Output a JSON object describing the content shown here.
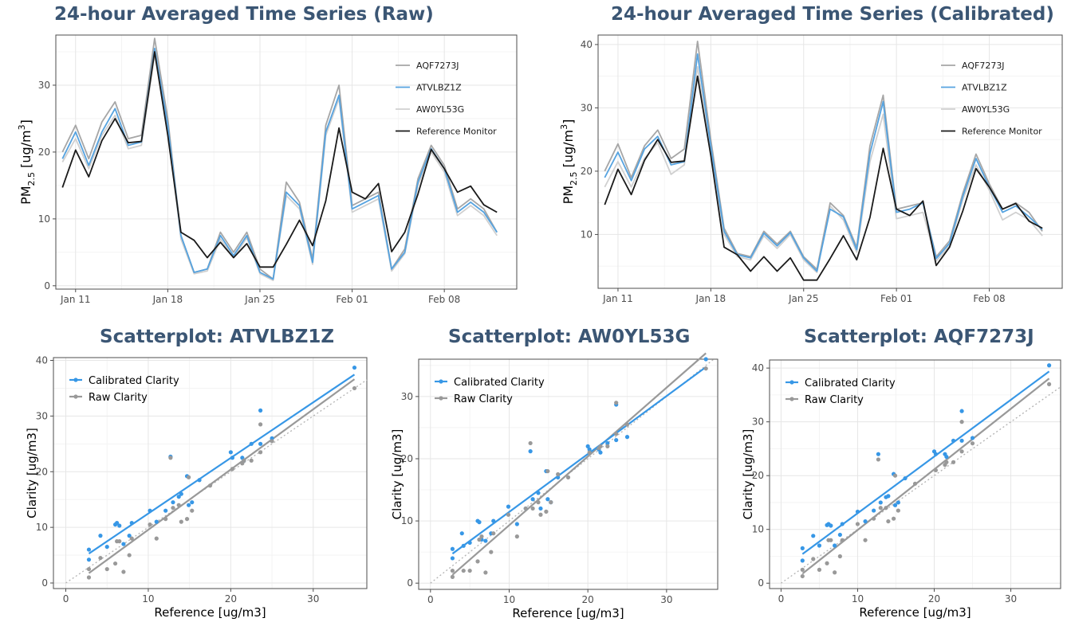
{
  "chart_data": [
    {
      "type": "line",
      "title": "24-hour Averaged Time Series (Raw)",
      "ylabel": "PM",
      "ylabel_sub": "2.5",
      "ylabel_unit_pre": " [ug/m",
      "ylabel_unit_sup": "3",
      "ylabel_unit_post": "]",
      "ylim": [
        -0.5,
        37.5
      ],
      "yticks": [
        0,
        10,
        20,
        30
      ],
      "xlim": [
        9.5,
        44.5
      ],
      "xticks": [
        {
          "x": 11,
          "label": "Jan 11"
        },
        {
          "x": 18,
          "label": "Jan 18"
        },
        {
          "x": 25,
          "label": "Jan 25"
        },
        {
          "x": 32,
          "label": "Feb 01"
        },
        {
          "x": 39,
          "label": "Feb 08"
        }
      ],
      "x": [
        10,
        11,
        12,
        13,
        14,
        15,
        16,
        17,
        18,
        19,
        20,
        21,
        22,
        23,
        24,
        25,
        26,
        27,
        28,
        29,
        30,
        31,
        32,
        33,
        34,
        35,
        36,
        37,
        38,
        39,
        40,
        41,
        42,
        43
      ],
      "grid": true,
      "legend_position": "top-right",
      "series": [
        {
          "name": "AQF7273J",
          "color": "#a6a6a6",
          "values": [
            20,
            24,
            19,
            24.5,
            27.5,
            22,
            22.5,
            37,
            25,
            7.5,
            2,
            2.5,
            8,
            5,
            8,
            2.5,
            1,
            15.5,
            12.5,
            4,
            24,
            30,
            12,
            13,
            14,
            2.5,
            5.5,
            16,
            21,
            18,
            11.5,
            13,
            11.5,
            8
          ]
        },
        {
          "name": "ATVLBZ1Z",
          "color": "#56a3e0",
          "values": [
            19,
            23,
            18,
            23,
            26.5,
            21,
            21.5,
            35.5,
            24,
            7.5,
            2,
            2.5,
            7.5,
            4.5,
            7.5,
            2,
            1,
            14,
            12,
            3.5,
            23,
            28.5,
            11.5,
            12.5,
            13.5,
            2.5,
            5,
            15.5,
            20.5,
            17.5,
            11,
            12.5,
            11,
            8
          ]
        },
        {
          "name": "AW0YL53G",
          "color": "#d0d0d0",
          "values": [
            18.5,
            22,
            17.5,
            22.5,
            25.5,
            20.5,
            21,
            34.5,
            23.5,
            7,
            1.8,
            2.2,
            7,
            4.2,
            7.2,
            1.8,
            0.8,
            13.5,
            11.5,
            3.2,
            22.5,
            28,
            11,
            12,
            13,
            2.2,
            4.8,
            15,
            20,
            17,
            10.5,
            12,
            10.5,
            7.5
          ]
        },
        {
          "name": "Reference Monitor",
          "color": "#1a1a1a",
          "values": [
            14.7,
            20.3,
            16.3,
            21.7,
            25,
            21.4,
            21.6,
            35,
            22.5,
            8,
            6.8,
            4.2,
            6.5,
            4.2,
            6.3,
            2.8,
            2.8,
            6.2,
            9.8,
            6,
            12.7,
            23.6,
            14,
            13,
            15.3,
            5.1,
            8,
            13.7,
            20.4,
            17.5,
            14,
            14.9,
            12.1,
            11
          ]
        }
      ]
    },
    {
      "type": "line",
      "title": "24-hour Averaged Time Series (Calibrated)",
      "ylabel": "PM",
      "ylabel_sub": "2.5",
      "ylabel_unit_pre": " [ug/m",
      "ylabel_unit_sup": "3",
      "ylabel_unit_post": "]",
      "ylim": [
        1.5,
        41.5
      ],
      "yticks": [
        10,
        20,
        30,
        40
      ],
      "xlim": [
        9.5,
        44.5
      ],
      "xticks": [
        {
          "x": 11,
          "label": "Jan 11"
        },
        {
          "x": 18,
          "label": "Jan 18"
        },
        {
          "x": 25,
          "label": "Jan 25"
        },
        {
          "x": 32,
          "label": "Feb 01"
        },
        {
          "x": 39,
          "label": "Feb 08"
        }
      ],
      "x": [
        10,
        11,
        12,
        13,
        14,
        15,
        16,
        17,
        18,
        19,
        20,
        21,
        22,
        23,
        24,
        25,
        26,
        27,
        28,
        29,
        30,
        31,
        32,
        33,
        34,
        35,
        36,
        37,
        38,
        39,
        40,
        41,
        42,
        43
      ],
      "grid": true,
      "legend_position": "top-right",
      "series": [
        {
          "name": "AQF7273J",
          "color": "#a6a6a6",
          "values": [
            20,
            24.3,
            19,
            24,
            26.5,
            22,
            23.5,
            40.5,
            25,
            11,
            7,
            6.5,
            10.5,
            8.5,
            10.5,
            6.5,
            4.5,
            15,
            13,
            8,
            24,
            32,
            14,
            14.5,
            15,
            6.5,
            9,
            16.5,
            22.7,
            18,
            14,
            15,
            13.5,
            10.5
          ]
        },
        {
          "name": "ATVLBZ1Z",
          "color": "#56a3e0",
          "values": [
            19,
            23,
            18.5,
            23.5,
            25.5,
            21,
            21.5,
            38.5,
            24,
            10.5,
            6.8,
            6.3,
            10.2,
            8.2,
            10.3,
            6.3,
            4.2,
            14,
            12.8,
            7.6,
            22.8,
            31,
            13.5,
            14,
            15,
            6.2,
            8.6,
            16,
            22,
            17.5,
            13.5,
            14.5,
            12.8,
            10.8
          ]
        },
        {
          "name": "AW0YL53G",
          "color": "#d0d0d0",
          "values": [
            17.5,
            21.5,
            17.5,
            22,
            24.5,
            19.5,
            21,
            36.5,
            23,
            10,
            6.5,
            6,
            9.8,
            7.8,
            10,
            6,
            4,
            14.5,
            12.3,
            7.2,
            21.5,
            29,
            12.5,
            13,
            13.5,
            5.8,
            8.2,
            15.5,
            21,
            17,
            12.3,
            13.5,
            12.3,
            9.8
          ]
        },
        {
          "name": "Reference Monitor",
          "color": "#1a1a1a",
          "values": [
            14.7,
            20.3,
            16.3,
            21.7,
            25,
            21.4,
            21.6,
            35,
            22.5,
            8,
            6.8,
            4.2,
            6.5,
            4.2,
            6.3,
            2.8,
            2.8,
            6.2,
            9.8,
            6,
            12.7,
            23.6,
            14,
            13,
            15.3,
            5.1,
            8,
            13.7,
            20.4,
            17.5,
            14,
            14.9,
            12.1,
            11
          ]
        }
      ]
    },
    {
      "type": "scatter",
      "title": "Scatterplot: ATVLBZ1Z",
      "xlabel": "Reference [ug/m3]",
      "ylabel": "Clarity [ug/m3]",
      "xlim": [
        -1.5,
        36.5
      ],
      "ylim": [
        -1,
        40.5
      ],
      "xticks": [
        0,
        10,
        20,
        30
      ],
      "yticks": [
        0,
        10,
        20,
        30,
        40
      ],
      "grid": true,
      "legend_position": "top-left",
      "identity_line": true,
      "series": [
        {
          "name": "Calibrated Clarity",
          "color": "#3797e6",
          "x": [
            2.8,
            2.8,
            4.2,
            5,
            6,
            6.2,
            6.5,
            7,
            7.7,
            8,
            10.2,
            11,
            12.1,
            12.7,
            13,
            13.7,
            14,
            14.7,
            14.9,
            15.3,
            16.2,
            20,
            20.2,
            21.4,
            21.6,
            22.5,
            23.6,
            23.6,
            25,
            35
          ],
          "y": [
            6,
            4.2,
            8.5,
            6.5,
            10.5,
            10.8,
            10.3,
            7,
            8.5,
            10.8,
            13,
            11,
            13,
            22.7,
            14.5,
            15.5,
            16,
            19.2,
            14,
            14.5,
            18.5,
            23.5,
            22.5,
            22.5,
            22,
            25,
            31,
            25,
            26,
            38.7
          ],
          "fit": [
            [
              2.8,
              4.7
            ],
            [
              35,
              37
            ]
          ]
        },
        {
          "name": "Raw Clarity",
          "color": "#999999",
          "x": [
            2.8,
            2.8,
            4.2,
            5,
            6,
            6.2,
            6.5,
            7,
            7.7,
            8,
            10.2,
            11,
            12.1,
            12.7,
            13,
            13.7,
            14,
            14.7,
            14.9,
            15.3,
            17.5,
            20.2,
            21.4,
            21.6,
            22.5,
            23.6,
            23.6,
            25,
            35
          ],
          "y": [
            1,
            2.5,
            4.5,
            2.5,
            3.5,
            7.5,
            7.5,
            2,
            5,
            8,
            10.5,
            8,
            11.5,
            22.5,
            13.5,
            14,
            11,
            11.5,
            19,
            13,
            17.5,
            20.5,
            21.5,
            22,
            22,
            23.5,
            28.5,
            25.5,
            35
          ],
          "fit": [
            [
              2.8,
              1.8
            ],
            [
              35,
              37
            ]
          ]
        }
      ]
    },
    {
      "type": "scatter",
      "title": "Scatterplot: AW0YL53G",
      "xlabel": "Reference [ug/m3]",
      "ylabel": "Clarity [ug/m3]",
      "xlim": [
        -1.5,
        36.5
      ],
      "ylim": [
        -1,
        36
      ],
      "xticks": [
        0,
        10,
        20,
        30
      ],
      "yticks": [
        0,
        10,
        20,
        30
      ],
      "grid": true,
      "legend_position": "top-left",
      "identity_line": true,
      "series": [
        {
          "name": "Calibrated Clarity",
          "color": "#3797e6",
          "x": [
            2.8,
            2.8,
            4,
            4.2,
            5,
            6,
            6.2,
            6.5,
            7,
            7.7,
            8,
            9.9,
            11,
            12.1,
            12.7,
            13,
            13.7,
            14,
            14.7,
            14.9,
            15.3,
            16.2,
            20,
            20.2,
            21.4,
            21.6,
            22.5,
            23.6,
            23.6,
            25,
            35
          ],
          "y": [
            5.5,
            4,
            8,
            6,
            6.5,
            10,
            9.8,
            7,
            6.8,
            8,
            10,
            12.3,
            9.5,
            12,
            21.2,
            13.5,
            14.5,
            12,
            18,
            13.5,
            13,
            17,
            22,
            21.5,
            21.5,
            21,
            22.5,
            28.7,
            23,
            23.5,
            36
          ]
        },
        {
          "name": "Raw Clarity",
          "color": "#999999",
          "x": [
            2.8,
            2.8,
            4.2,
            5,
            6,
            6.2,
            6.5,
            7,
            7.7,
            8,
            9.9,
            11,
            12.1,
            12.7,
            13,
            13.7,
            14,
            14.7,
            14.9,
            15.3,
            16.2,
            17.5,
            20.2,
            21.4,
            21.6,
            22.5,
            23.6,
            23.6,
            25,
            35
          ],
          "y": [
            1,
            2,
            2,
            2,
            3.5,
            7,
            7.5,
            1.7,
            5,
            8,
            11,
            7.5,
            12,
            22.5,
            12,
            13,
            11,
            11.5,
            18,
            13,
            17.5,
            17,
            21,
            21.7,
            22,
            22,
            24,
            29,
            25.5,
            34.5
          ]
        }
      ]
    },
    {
      "type": "scatter",
      "title": "Scatterplot: AQF7273J",
      "xlabel": "Reference [ug/m3]",
      "ylabel": "Clarity [ug/m3]",
      "xlim": [
        -1.5,
        36.5
      ],
      "ylim": [
        -1,
        41.5
      ],
      "xticks": [
        0,
        10,
        20,
        30
      ],
      "yticks": [
        0,
        10,
        20,
        30,
        40
      ],
      "grid": true,
      "legend_position": "top-left",
      "identity_line": true,
      "series": [
        {
          "name": "Calibrated Clarity",
          "color": "#3797e6",
          "x": [
            2.8,
            2.8,
            4.2,
            5,
            6,
            6.2,
            6.5,
            7,
            7.7,
            8,
            10,
            11,
            12.1,
            12.7,
            13,
            13.7,
            14,
            14.7,
            14.9,
            15.3,
            16.2,
            20,
            20.2,
            21.4,
            21.6,
            22.5,
            23.6,
            23.6,
            25,
            35
          ],
          "y": [
            6.5,
            4.2,
            8.8,
            7,
            10.8,
            11,
            10.7,
            7,
            9,
            11,
            13.3,
            11.5,
            13.5,
            24,
            15,
            16,
            16.2,
            20.3,
            14.5,
            15,
            19.5,
            24.5,
            24,
            24,
            23.5,
            26.5,
            32,
            26.5,
            27,
            40.5
          ]
        },
        {
          "name": "Raw Clarity",
          "color": "#999999",
          "x": [
            2.8,
            2.8,
            4.2,
            5,
            6,
            6.2,
            6.5,
            7,
            7.7,
            8,
            10,
            11,
            12.1,
            12.7,
            13,
            13.7,
            14,
            14.7,
            14.9,
            15.3,
            17.5,
            20.2,
            21.4,
            21.6,
            22.5,
            23.6,
            23.6,
            25,
            35
          ],
          "y": [
            1.3,
            2.5,
            4.5,
            2.5,
            3.7,
            8,
            8,
            2,
            5,
            8,
            11,
            8,
            12,
            23,
            14,
            14,
            11.5,
            12,
            20,
            13.5,
            18.5,
            21,
            22,
            22.5,
            22.5,
            24.5,
            30,
            26,
            37
          ]
        }
      ]
    }
  ]
}
